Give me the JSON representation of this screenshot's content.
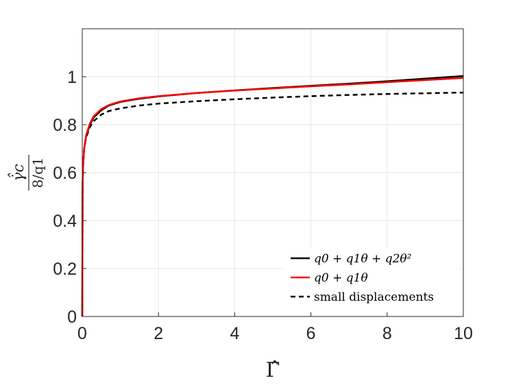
{
  "chart_data": {
    "type": "line",
    "xlabel": "Γ̂",
    "ylabel": {
      "numerator": "γ̇̂c",
      "denominator": "8/q1"
    },
    "xlim": [
      0,
      10
    ],
    "ylim": [
      0,
      1.2
    ],
    "xticks": [
      0,
      2,
      4,
      6,
      8,
      10
    ],
    "yticks": [
      0,
      0.2,
      0.4,
      0.6,
      0.8,
      1
    ],
    "xtick_labels": [
      "0",
      "2",
      "4",
      "6",
      "8",
      "10"
    ],
    "ytick_labels": [
      "0",
      "0.2",
      "0.4",
      "0.6",
      "0.8",
      "1"
    ],
    "grid": true,
    "legend_position": "bottom-right",
    "series": [
      {
        "name": "q0 + q1θ + q2θ²",
        "color": "#000000",
        "dash": "solid",
        "x": [
          0,
          0.01,
          0.02,
          0.05,
          0.1,
          0.2,
          0.3,
          0.5,
          0.7,
          1,
          1.5,
          2,
          3,
          4,
          5,
          6,
          7,
          8,
          9,
          10
        ],
        "y": [
          0,
          0.55,
          0.62,
          0.7,
          0.75,
          0.8,
          0.83,
          0.86,
          0.88,
          0.895,
          0.908,
          0.918,
          0.932,
          0.943,
          0.953,
          0.962,
          0.971,
          0.981,
          0.992,
          1.003
        ]
      },
      {
        "name": "q0 + q1θ",
        "color": "#ff0000",
        "dash": "solid",
        "x": [
          0,
          0.01,
          0.02,
          0.05,
          0.1,
          0.2,
          0.3,
          0.5,
          0.7,
          1,
          1.5,
          2,
          3,
          4,
          5,
          6,
          7,
          8,
          9,
          10
        ],
        "y": [
          0,
          0.55,
          0.62,
          0.7,
          0.755,
          0.805,
          0.835,
          0.865,
          0.882,
          0.897,
          0.91,
          0.919,
          0.932,
          0.942,
          0.951,
          0.96,
          0.968,
          0.977,
          0.986,
          0.995
        ]
      },
      {
        "name": "small displacements",
        "color": "#000000",
        "dash": "dashed",
        "x": [
          0,
          0.01,
          0.02,
          0.05,
          0.1,
          0.2,
          0.3,
          0.5,
          0.7,
          1,
          1.5,
          2,
          3,
          4,
          5,
          6,
          7,
          8,
          9,
          10
        ],
        "y": [
          0,
          0.55,
          0.62,
          0.7,
          0.745,
          0.79,
          0.815,
          0.842,
          0.857,
          0.868,
          0.88,
          0.888,
          0.898,
          0.906,
          0.913,
          0.919,
          0.924,
          0.928,
          0.931,
          0.934
        ]
      }
    ]
  }
}
